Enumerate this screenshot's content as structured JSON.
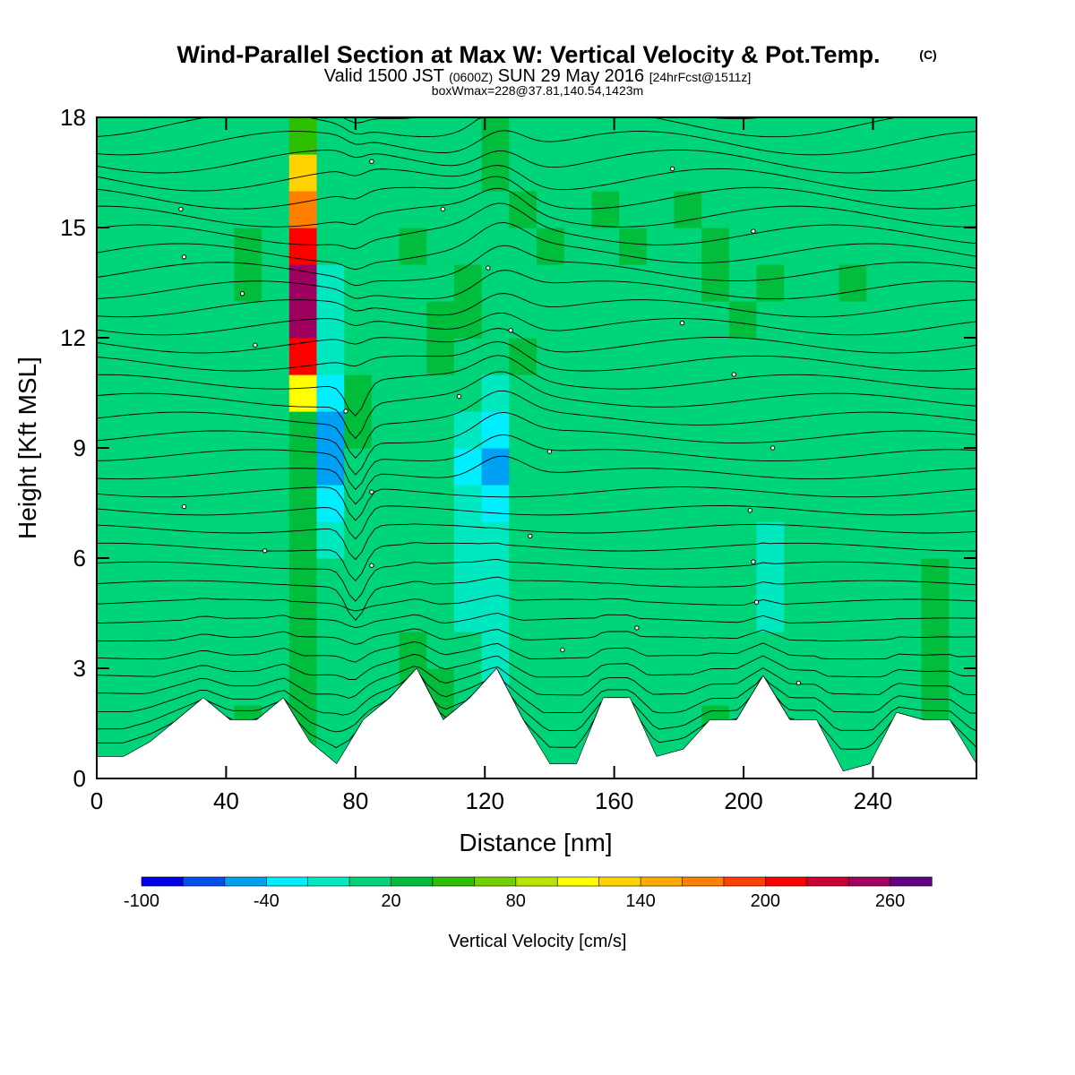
{
  "chart_data": {
    "type": "heatmap",
    "title": "Wind-Parallel Section at Max W: Vertical Velocity & Pot.Temp.",
    "copyright": "(C)",
    "subtitle": {
      "valid": "Valid 1500 JST",
      "utc": "(0600Z)",
      "date": "SUN 29 May 2016",
      "fcst": "[24hrFcst@1511z]"
    },
    "box_note": "boxWmax=228@37.81,140.54,1423m",
    "xlabel": "Distance [nm]",
    "ylabel": "Height [Kft MSL]",
    "xlim": [
      0,
      272
    ],
    "ylim": [
      0,
      18
    ],
    "xticks": [
      "0",
      "40",
      "80",
      "120",
      "160",
      "200",
      "240"
    ],
    "yticks": [
      "0",
      "3",
      "6",
      "9",
      "12",
      "15",
      "18"
    ],
    "grid": false,
    "colorbar": {
      "label": "Vertical Velocity [cm/s]",
      "tick_labels": [
        "-100",
        "-40",
        "20",
        "80",
        "140",
        "200",
        "260"
      ],
      "colors": [
        "#0000ee",
        "#0050f0",
        "#00a0f5",
        "#00eeff",
        "#00e8c0",
        "#00d478",
        "#00be3c",
        "#2ec000",
        "#72d000",
        "#b8e600",
        "#ffff00",
        "#ffd200",
        "#ffaa00",
        "#ff8000",
        "#ff4000",
        "#ff0000",
        "#cc0030",
        "#a00060",
        "#600080"
      ]
    },
    "terrain_heights_kft": [
      0.6,
      0.6,
      1.0,
      1.6,
      2.2,
      1.6,
      1.6,
      2.2,
      1.0,
      0.4,
      1.6,
      2.2,
      3.0,
      1.6,
      2.2,
      3.0,
      1.6,
      0.4,
      0.4,
      2.2,
      2.2,
      0.6,
      0.8,
      1.6,
      1.6,
      2.8,
      1.6,
      1.6,
      0.2,
      0.4,
      1.8,
      1.6,
      1.6,
      0.4
    ],
    "velocity_field_cm_s": [
      [
        5,
        5,
        5,
        12,
        12,
        20,
        12,
        30,
        5,
        5,
        12,
        20,
        30,
        12,
        12,
        20,
        5,
        12,
        5,
        5,
        12,
        5,
        20,
        12,
        5,
        5,
        5,
        12,
        5,
        12,
        20,
        12
      ],
      [
        5,
        5,
        12,
        12,
        5,
        20,
        12,
        20,
        5,
        5,
        12,
        30,
        30,
        12,
        12,
        12,
        5,
        12,
        5,
        5,
        12,
        12,
        20,
        12,
        5,
        5,
        5,
        12,
        5,
        12,
        20,
        12
      ],
      [
        5,
        5,
        12,
        12,
        5,
        12,
        12,
        20,
        5,
        5,
        5,
        30,
        20,
        5,
        -5,
        12,
        5,
        12,
        5,
        5,
        12,
        12,
        12,
        12,
        5,
        5,
        5,
        12,
        5,
        12,
        30,
        12
      ],
      [
        12,
        5,
        12,
        12,
        5,
        12,
        5,
        20,
        5,
        5,
        5,
        20,
        12,
        5,
        -20,
        5,
        5,
        12,
        5,
        5,
        5,
        12,
        12,
        12,
        5,
        5,
        5,
        12,
        5,
        12,
        20,
        12
      ],
      [
        12,
        5,
        12,
        12,
        5,
        12,
        5,
        20,
        12,
        5,
        5,
        12,
        5,
        -5,
        -20,
        5,
        5,
        5,
        5,
        5,
        5,
        12,
        12,
        5,
        -5,
        5,
        5,
        12,
        5,
        12,
        20,
        12
      ],
      [
        12,
        5,
        12,
        5,
        5,
        5,
        5,
        20,
        12,
        5,
        5,
        12,
        5,
        -5,
        -20,
        5,
        5,
        5,
        5,
        5,
        5,
        12,
        12,
        5,
        -5,
        5,
        5,
        12,
        5,
        12,
        20,
        12
      ],
      [
        12,
        5,
        12,
        5,
        5,
        5,
        5,
        20,
        -20,
        5,
        5,
        12,
        5,
        -20,
        -20,
        5,
        5,
        5,
        5,
        5,
        5,
        5,
        12,
        5,
        -5,
        5,
        5,
        12,
        5,
        12,
        12,
        12
      ],
      [
        12,
        5,
        5,
        5,
        5,
        5,
        5,
        20,
        -40,
        12,
        5,
        5,
        5,
        -20,
        -40,
        5,
        5,
        5,
        5,
        5,
        5,
        5,
        12,
        5,
        5,
        5,
        5,
        12,
        5,
        12,
        12,
        12
      ],
      [
        12,
        5,
        5,
        5,
        5,
        5,
        5,
        20,
        -60,
        12,
        12,
        5,
        5,
        -40,
        -60,
        5,
        5,
        5,
        5,
        5,
        5,
        5,
        12,
        5,
        5,
        5,
        5,
        12,
        5,
        12,
        12,
        12
      ],
      [
        12,
        5,
        5,
        5,
        5,
        5,
        5,
        30,
        -60,
        20,
        12,
        12,
        5,
        -20,
        -40,
        12,
        5,
        5,
        5,
        5,
        5,
        5,
        12,
        5,
        5,
        5,
        5,
        12,
        5,
        12,
        12,
        12
      ],
      [
        5,
        5,
        5,
        5,
        5,
        5,
        5,
        100,
        -40,
        20,
        12,
        12,
        12,
        5,
        -20,
        12,
        12,
        5,
        5,
        5,
        5,
        5,
        12,
        5,
        5,
        5,
        12,
        12,
        5,
        12,
        12,
        12
      ],
      [
        5,
        5,
        5,
        5,
        5,
        5,
        12,
        200,
        -20,
        5,
        12,
        12,
        20,
        5,
        5,
        20,
        12,
        5,
        5,
        5,
        5,
        5,
        12,
        5,
        12,
        12,
        12,
        12,
        5,
        5,
        5,
        5
      ],
      [
        5,
        5,
        5,
        5,
        5,
        12,
        5,
        240,
        -20,
        5,
        5,
        12,
        20,
        20,
        5,
        5,
        12,
        5,
        5,
        5,
        5,
        5,
        12,
        20,
        12,
        5,
        12,
        12,
        5,
        5,
        5,
        5
      ],
      [
        5,
        5,
        5,
        5,
        5,
        20,
        5,
        240,
        -20,
        5,
        5,
        12,
        12,
        20,
        5,
        5,
        12,
        5,
        5,
        5,
        5,
        5,
        20,
        5,
        20,
        12,
        12,
        20,
        5,
        5,
        5,
        5
      ],
      [
        5,
        5,
        12,
        5,
        5,
        20,
        12,
        200,
        5,
        12,
        5,
        20,
        5,
        12,
        12,
        12,
        20,
        5,
        5,
        20,
        5,
        5,
        20,
        5,
        5,
        5,
        12,
        5,
        5,
        12,
        5,
        5
      ],
      [
        5,
        12,
        12,
        5,
        5,
        5,
        12,
        160,
        5,
        12,
        5,
        12,
        5,
        12,
        12,
        20,
        12,
        5,
        20,
        5,
        5,
        20,
        5,
        5,
        12,
        5,
        12,
        5,
        5,
        5,
        5,
        5
      ],
      [
        5,
        12,
        12,
        5,
        5,
        5,
        12,
        120,
        12,
        12,
        5,
        12,
        5,
        12,
        20,
        12,
        12,
        5,
        12,
        5,
        5,
        12,
        5,
        5,
        5,
        5,
        5,
        5,
        5,
        5,
        5,
        5
      ],
      [
        12,
        12,
        12,
        5,
        5,
        12,
        12,
        40,
        12,
        12,
        5,
        12,
        5,
        12,
        20,
        12,
        12,
        5,
        12,
        5,
        5,
        12,
        12,
        5,
        5,
        5,
        5,
        5,
        5,
        5,
        5,
        5
      ]
    ],
    "theta_label_points": [
      {
        "x": 26,
        "y": 15.5
      },
      {
        "x": 27,
        "y": 14.2
      },
      {
        "x": 45,
        "y": 13.2
      },
      {
        "x": 49,
        "y": 11.8
      },
      {
        "x": 27,
        "y": 7.4
      },
      {
        "x": 52,
        "y": 6.2
      },
      {
        "x": 77,
        "y": 10.0
      },
      {
        "x": 85,
        "y": 16.8
      },
      {
        "x": 107,
        "y": 15.5
      },
      {
        "x": 121,
        "y": 13.9
      },
      {
        "x": 128,
        "y": 12.2
      },
      {
        "x": 112,
        "y": 10.4
      },
      {
        "x": 85,
        "y": 7.8
      },
      {
        "x": 85,
        "y": 5.8
      },
      {
        "x": 140,
        "y": 8.9
      },
      {
        "x": 134,
        "y": 6.6
      },
      {
        "x": 178,
        "y": 16.6
      },
      {
        "x": 203,
        "y": 14.9
      },
      {
        "x": 181,
        "y": 12.4
      },
      {
        "x": 197,
        "y": 11.0
      },
      {
        "x": 209,
        "y": 9.0
      },
      {
        "x": 202,
        "y": 7.3
      },
      {
        "x": 203,
        "y": 5.9
      },
      {
        "x": 204,
        "y": 4.8
      },
      {
        "x": 167,
        "y": 4.1
      },
      {
        "x": 144,
        "y": 3.5
      },
      {
        "x": 217,
        "y": 2.6
      }
    ]
  }
}
